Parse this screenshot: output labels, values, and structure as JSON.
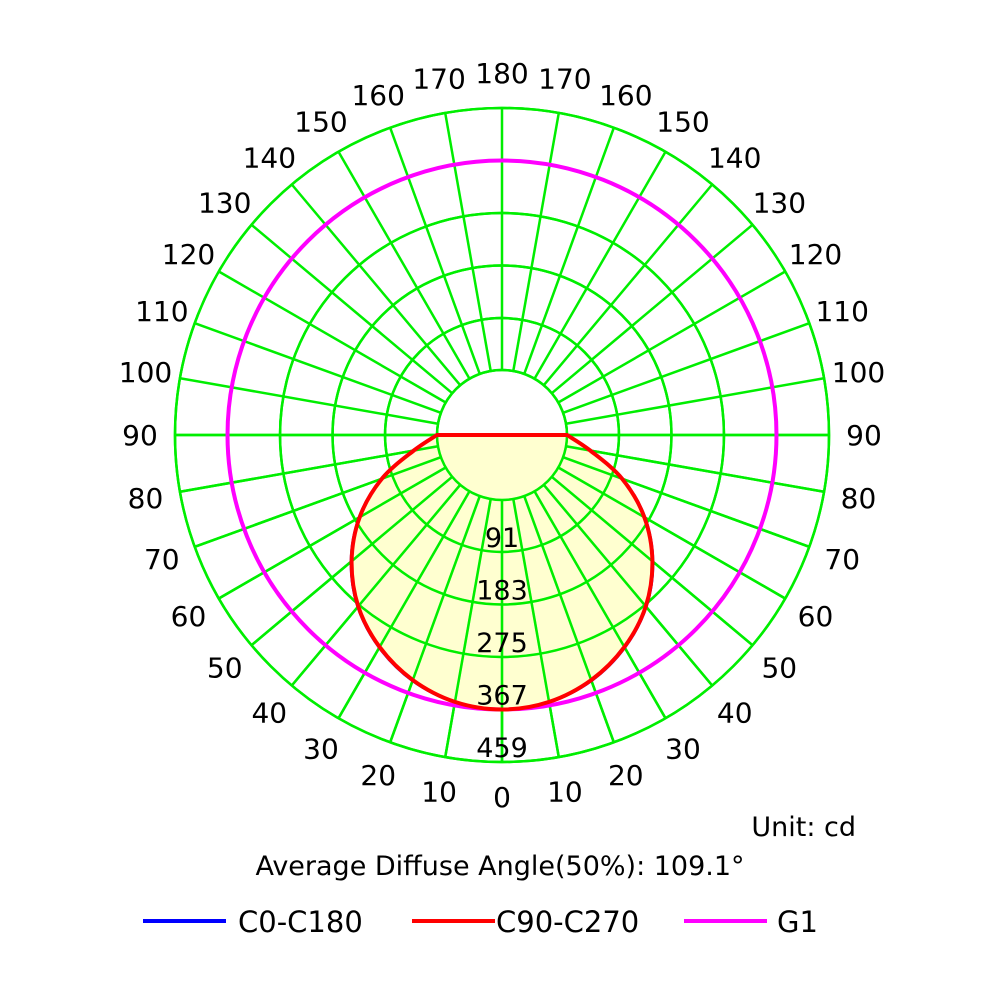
{
  "chart_data": {
    "type": "polar",
    "subtype": "photometric-intensity-distribution",
    "radial_ticks": [
      91,
      183,
      275,
      367,
      459
    ],
    "radial_tick_labels": [
      "91",
      "183",
      "275",
      "367",
      "459"
    ],
    "radial_max": 459,
    "angle_labels_left": [
      "0",
      "10",
      "20",
      "30",
      "40",
      "50",
      "60",
      "70",
      "80",
      "90",
      "100",
      "110",
      "120",
      "130",
      "140",
      "150",
      "160",
      "170",
      "180"
    ],
    "angle_labels_right": [
      "10",
      "20",
      "30",
      "40",
      "50",
      "60",
      "70",
      "80",
      "90",
      "100",
      "110",
      "120",
      "130",
      "140",
      "150",
      "160",
      "170"
    ],
    "angles": [
      0,
      10,
      20,
      30,
      40,
      50,
      60,
      70,
      80,
      90
    ],
    "series": [
      {
        "name": "C0-C180",
        "color": "#0000ff",
        "values": [
          367,
          361,
          344,
          316,
          279,
          231,
          175,
          111,
          44,
          0
        ]
      },
      {
        "name": "C90-C270",
        "color": "#ff0000",
        "values": [
          367,
          361,
          343,
          315,
          278,
          230,
          174,
          110,
          43,
          0
        ]
      },
      {
        "name": "G1",
        "color": "#ff00ff",
        "constant": 367
      }
    ],
    "unit_text": "Unit: cd",
    "annotation": "Average Diffuse Angle(50%): 109.1°",
    "grid": true,
    "legend_position": "bottom",
    "colors": {
      "grid": "#00ee00",
      "fill": "#ffffc0",
      "background": "#ffffff"
    }
  }
}
